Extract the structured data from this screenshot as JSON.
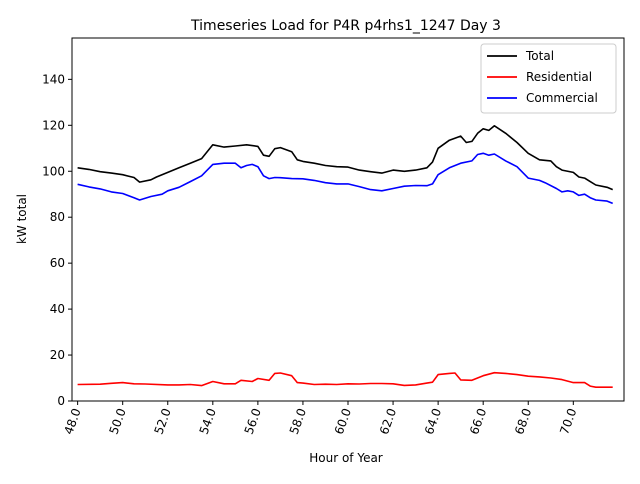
{
  "chart_data": {
    "type": "line",
    "title": "Timeseries Load for P4R p4rhs1_1247  Day 3",
    "xlabel": "Hour of Year",
    "ylabel": "kW total",
    "xlim": [
      47.75,
      72.25
    ],
    "ylim": [
      0,
      158
    ],
    "x_ticks": [
      48,
      50,
      52,
      54,
      56,
      58,
      60,
      62,
      64,
      66,
      68,
      70
    ],
    "x_tick_labels": [
      "48.0",
      "50.0",
      "52.0",
      "54.0",
      "56.0",
      "58.0",
      "60.0",
      "62.0",
      "64.0",
      "66.0",
      "68.0",
      "70.0"
    ],
    "y_ticks": [
      0,
      20,
      40,
      60,
      80,
      100,
      120,
      140
    ],
    "y_tick_labels": [
      "0",
      "20",
      "40",
      "60",
      "80",
      "100",
      "120",
      "140"
    ],
    "legend_position": "top-right",
    "series": [
      {
        "name": "Total",
        "color": "#000000",
        "points": [
          [
            48.0,
            101.5
          ],
          [
            48.5,
            100.8
          ],
          [
            49.0,
            99.8
          ],
          [
            49.5,
            99.2
          ],
          [
            50.0,
            98.5
          ],
          [
            50.5,
            97.3
          ],
          [
            50.75,
            95.3
          ],
          [
            51.25,
            96.3
          ],
          [
            51.5,
            97.5
          ],
          [
            52.0,
            99.5
          ],
          [
            52.5,
            101.5
          ],
          [
            53.0,
            103.5
          ],
          [
            53.5,
            105.5
          ],
          [
            54.0,
            111.5
          ],
          [
            54.5,
            110.5
          ],
          [
            55.0,
            111.0
          ],
          [
            55.5,
            111.5
          ],
          [
            56.0,
            110.8
          ],
          [
            56.25,
            107.0
          ],
          [
            56.5,
            106.5
          ],
          [
            56.75,
            109.8
          ],
          [
            57.0,
            110.3
          ],
          [
            57.5,
            108.5
          ],
          [
            57.75,
            105.0
          ],
          [
            58.0,
            104.3
          ],
          [
            58.5,
            103.5
          ],
          [
            59.0,
            102.5
          ],
          [
            59.5,
            102.0
          ],
          [
            60.0,
            101.8
          ],
          [
            60.5,
            100.5
          ],
          [
            61.0,
            99.8
          ],
          [
            61.5,
            99.2
          ],
          [
            62.0,
            100.5
          ],
          [
            62.5,
            100.0
          ],
          [
            63.0,
            100.5
          ],
          [
            63.5,
            101.5
          ],
          [
            63.75,
            104.0
          ],
          [
            64.0,
            110.0
          ],
          [
            64.5,
            113.5
          ],
          [
            65.0,
            115.3
          ],
          [
            65.25,
            112.5
          ],
          [
            65.5,
            113.0
          ],
          [
            65.75,
            116.5
          ],
          [
            66.0,
            118.5
          ],
          [
            66.25,
            117.8
          ],
          [
            66.5,
            119.8
          ],
          [
            67.0,
            116.5
          ],
          [
            67.5,
            112.5
          ],
          [
            68.0,
            107.8
          ],
          [
            68.5,
            105.0
          ],
          [
            69.0,
            104.5
          ],
          [
            69.25,
            102.0
          ],
          [
            69.5,
            100.5
          ],
          [
            70.0,
            99.5
          ],
          [
            70.25,
            97.5
          ],
          [
            70.5,
            97.0
          ],
          [
            70.75,
            95.5
          ],
          [
            71.0,
            94.0
          ],
          [
            71.5,
            93.0
          ],
          [
            71.75,
            92.0
          ]
        ]
      },
      {
        "name": "Residential",
        "color": "#ff0000",
        "points": [
          [
            48.0,
            7.2
          ],
          [
            49.0,
            7.3
          ],
          [
            49.5,
            7.7
          ],
          [
            50.0,
            8.0
          ],
          [
            50.5,
            7.5
          ],
          [
            51.0,
            7.4
          ],
          [
            52.0,
            7.0
          ],
          [
            52.5,
            7.0
          ],
          [
            53.0,
            7.2
          ],
          [
            53.5,
            6.7
          ],
          [
            54.0,
            8.5
          ],
          [
            54.5,
            7.5
          ],
          [
            55.0,
            7.5
          ],
          [
            55.25,
            9.0
          ],
          [
            55.75,
            8.5
          ],
          [
            56.0,
            9.8
          ],
          [
            56.5,
            9.0
          ],
          [
            56.75,
            12.0
          ],
          [
            57.0,
            12.2
          ],
          [
            57.5,
            11.0
          ],
          [
            57.75,
            8.0
          ],
          [
            58.0,
            7.8
          ],
          [
            58.5,
            7.2
          ],
          [
            59.0,
            7.3
          ],
          [
            59.5,
            7.2
          ],
          [
            60.0,
            7.5
          ],
          [
            60.5,
            7.4
          ],
          [
            61.0,
            7.6
          ],
          [
            61.5,
            7.6
          ],
          [
            62.0,
            7.5
          ],
          [
            62.5,
            6.8
          ],
          [
            63.0,
            7.0
          ],
          [
            63.5,
            7.8
          ],
          [
            63.75,
            8.2
          ],
          [
            64.0,
            11.5
          ],
          [
            64.5,
            12.0
          ],
          [
            64.75,
            12.2
          ],
          [
            65.0,
            9.2
          ],
          [
            65.5,
            9.0
          ],
          [
            66.0,
            11.0
          ],
          [
            66.5,
            12.3
          ],
          [
            67.0,
            12.0
          ],
          [
            67.5,
            11.5
          ],
          [
            68.0,
            10.8
          ],
          [
            68.5,
            10.5
          ],
          [
            69.0,
            10.0
          ],
          [
            69.5,
            9.3
          ],
          [
            70.0,
            8.0
          ],
          [
            70.5,
            8.0
          ],
          [
            70.75,
            6.5
          ],
          [
            71.0,
            6.0
          ],
          [
            71.75,
            6.0
          ]
        ]
      },
      {
        "name": "Commercial",
        "color": "#0000ff",
        "points": [
          [
            48.0,
            94.3
          ],
          [
            48.5,
            93.2
          ],
          [
            49.0,
            92.3
          ],
          [
            49.5,
            91.0
          ],
          [
            50.0,
            90.3
          ],
          [
            50.5,
            88.5
          ],
          [
            50.75,
            87.5
          ],
          [
            51.25,
            89.0
          ],
          [
            51.75,
            90.0
          ],
          [
            52.0,
            91.5
          ],
          [
            52.5,
            93.0
          ],
          [
            53.0,
            95.5
          ],
          [
            53.5,
            98.0
          ],
          [
            54.0,
            103.0
          ],
          [
            54.5,
            103.5
          ],
          [
            55.0,
            103.5
          ],
          [
            55.25,
            101.5
          ],
          [
            55.5,
            102.5
          ],
          [
            55.75,
            103.0
          ],
          [
            56.0,
            102.0
          ],
          [
            56.25,
            98.0
          ],
          [
            56.5,
            96.8
          ],
          [
            56.75,
            97.3
          ],
          [
            57.0,
            97.2
          ],
          [
            57.5,
            96.8
          ],
          [
            58.0,
            96.7
          ],
          [
            58.5,
            96.0
          ],
          [
            59.0,
            95.0
          ],
          [
            59.5,
            94.5
          ],
          [
            60.0,
            94.5
          ],
          [
            60.5,
            93.3
          ],
          [
            61.0,
            92.0
          ],
          [
            61.5,
            91.5
          ],
          [
            62.0,
            92.5
          ],
          [
            62.5,
            93.5
          ],
          [
            63.0,
            93.8
          ],
          [
            63.5,
            93.7
          ],
          [
            63.75,
            94.5
          ],
          [
            64.0,
            98.5
          ],
          [
            64.5,
            101.5
          ],
          [
            65.0,
            103.5
          ],
          [
            65.5,
            104.5
          ],
          [
            65.75,
            107.3
          ],
          [
            66.0,
            107.8
          ],
          [
            66.25,
            107.0
          ],
          [
            66.5,
            107.5
          ],
          [
            67.0,
            104.5
          ],
          [
            67.5,
            102.0
          ],
          [
            68.0,
            97.0
          ],
          [
            68.5,
            96.0
          ],
          [
            68.75,
            95.0
          ],
          [
            69.25,
            92.5
          ],
          [
            69.5,
            91.0
          ],
          [
            69.75,
            91.5
          ],
          [
            70.0,
            91.0
          ],
          [
            70.25,
            89.5
          ],
          [
            70.5,
            90.0
          ],
          [
            70.75,
            88.5
          ],
          [
            71.0,
            87.5
          ],
          [
            71.5,
            87.0
          ],
          [
            71.75,
            86.0
          ]
        ]
      }
    ]
  }
}
